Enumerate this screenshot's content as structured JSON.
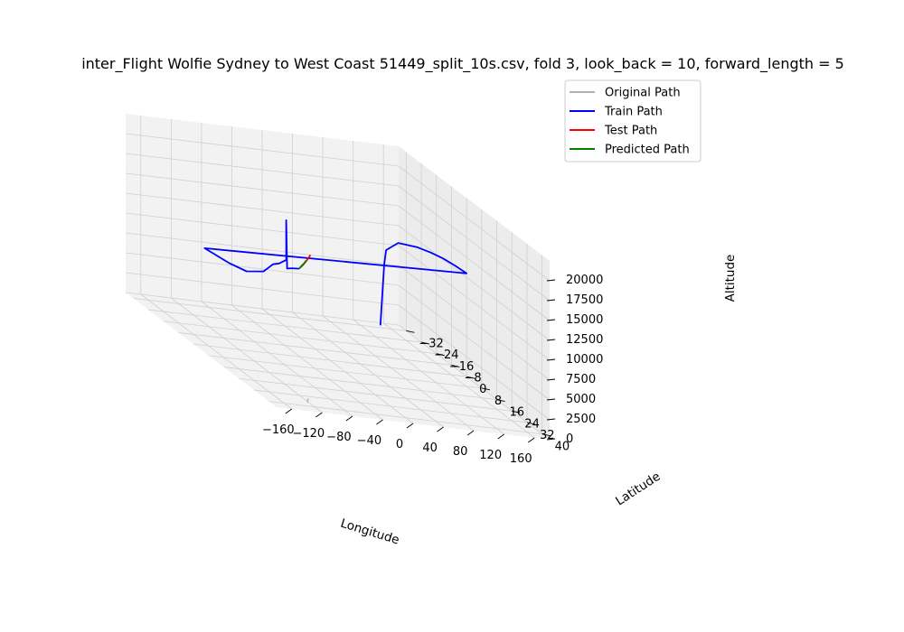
{
  "chart_data": {
    "type": "line3d",
    "title": "inter_Flight Wolfie Sydney to West Coast 51449_split_10s.csv, fold 3, look_back = 10, forward_length = 5",
    "xlabel": "Longitude",
    "ylabel": "Latitude",
    "zlabel": "Altitude",
    "xlim": [
      -180,
      180
    ],
    "ylim": [
      -36,
      44
    ],
    "zlim": [
      0,
      22500
    ],
    "x_ticks": [
      -160,
      -120,
      -80,
      -40,
      0,
      40,
      80,
      120,
      160
    ],
    "y_ticks": [
      -32,
      -24,
      -16,
      -8,
      0,
      8,
      16,
      24,
      32,
      40
    ],
    "z_ticks": [
      0,
      2500,
      5000,
      7500,
      10000,
      12500,
      15000,
      17500,
      20000
    ],
    "x_tick_labels": [
      "−160",
      "−120",
      "−80",
      "−40",
      "0",
      "40",
      "80",
      "120",
      "160"
    ],
    "y_tick_labels": [
      "−32",
      "−24",
      "−16",
      "−8",
      "0",
      "8",
      "16",
      "24",
      "32",
      "40"
    ],
    "z_tick_labels": [
      "0",
      "2500",
      "5000",
      "7500",
      "10000",
      "12500",
      "15000",
      "17500",
      "20000"
    ],
    "grid": true,
    "legend_position": "upper-right",
    "series": [
      {
        "name": "Original Path",
        "color": "#b0b0b0",
        "points": [
          [
            -122,
            37,
            0
          ],
          [
            -121,
            37,
            500
          ]
        ]
      },
      {
        "name": "Train Path",
        "color": "#0000ff",
        "points": [
          [
            151,
            -34,
            0
          ],
          [
            151,
            -33,
            4000
          ],
          [
            151,
            -32,
            8000
          ],
          [
            151,
            -31,
            10000
          ],
          [
            152,
            -25,
            12000
          ],
          [
            165,
            -20,
            12500
          ],
          [
            170,
            -15,
            12800
          ],
          [
            174,
            -10,
            13000
          ],
          [
            178,
            -5,
            13000
          ],
          [
            180,
            0,
            13000
          ],
          [
            -178,
            5,
            13000
          ],
          [
            -170,
            15,
            13000
          ],
          [
            -160,
            20,
            13000
          ],
          [
            -150,
            25,
            14000
          ],
          [
            -145,
            28,
            15500
          ],
          [
            -142,
            30,
            16000
          ],
          [
            -140,
            33,
            17000
          ],
          [
            -140,
            33,
            22000
          ],
          [
            -140,
            33.5,
            16000
          ],
          [
            -135,
            34,
            16200
          ],
          [
            -128,
            35,
            16400
          ]
        ]
      },
      {
        "name": "Test Path",
        "color": "#ff0000",
        "points": [
          [
            -128,
            35,
            16400
          ],
          [
            -124,
            35.5,
            17000
          ],
          [
            -122,
            36,
            17500
          ],
          [
            -120,
            36.5,
            18000
          ],
          [
            -118,
            37,
            18600
          ]
        ]
      },
      {
        "name": "Predicted Path",
        "color": "#008000",
        "points": [
          [
            -128,
            35,
            16400
          ],
          [
            -125,
            35.3,
            16900
          ],
          [
            -123,
            35.8,
            17300
          ],
          [
            -122,
            36.2,
            17700
          ]
        ]
      }
    ]
  }
}
